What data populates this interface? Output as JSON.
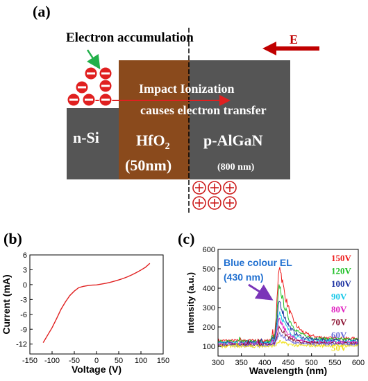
{
  "panels": {
    "a": {
      "label": "(a)",
      "annotation_accumulation": "Electron accumulation",
      "field_label": "E",
      "impact_line1": "Impact Ionization",
      "impact_line2": "causes electron transfer",
      "layers": {
        "nsi": "n-Si",
        "hfo2_main": "HfO",
        "hfo2_sub": "2",
        "hfo2_thickness": "(50nm)",
        "algan": "p-AlGaN",
        "algan_thickness": "(800 nm)"
      },
      "colors": {
        "nsi": "#555555",
        "hfo2": "#8a4a1c",
        "algan": "#555555",
        "electron": "#e02020",
        "hole": "#cc1b1b",
        "field_arrow": "#c00000",
        "accum_arrow": "#22b04a",
        "transfer_arrow": "#e02020"
      }
    },
    "b": {
      "label": "(b)",
      "chart_data": {
        "type": "line",
        "xlabel": "Voltage (V)",
        "ylabel": "Current (mA)",
        "xlim": [
          -150,
          150
        ],
        "ylim": [
          -14,
          6
        ],
        "xticks": [
          -150,
          -100,
          -50,
          0,
          50,
          100,
          150
        ],
        "yticks": [
          -12,
          -9,
          -6,
          -3,
          0,
          3,
          6
        ],
        "color": "#e02020",
        "x": [
          -120,
          -110,
          -100,
          -90,
          -80,
          -70,
          -60,
          -50,
          -40,
          -30,
          -20,
          -10,
          0,
          10,
          20,
          30,
          40,
          50,
          60,
          70,
          80,
          90,
          100,
          110,
          120
        ],
        "y": [
          -11.7,
          -10.2,
          -8.7,
          -6.9,
          -5.0,
          -3.5,
          -2.2,
          -1.3,
          -0.6,
          -0.35,
          -0.2,
          -0.1,
          -0.05,
          0.1,
          0.25,
          0.45,
          0.7,
          0.95,
          1.25,
          1.6,
          2.0,
          2.45,
          2.95,
          3.5,
          4.3
        ]
      }
    },
    "c": {
      "label": "(c)",
      "annotation": "Blue colour EL",
      "annotation_sub": "(430 nm)",
      "annotation_color": "#1f6fd0",
      "annotation_arrow_color": "#7a35b8",
      "chart_data": {
        "type": "line",
        "xlabel": "Wavelength (nm)",
        "ylabel": "Intensity (a.u.)",
        "xlim": [
          300,
          600
        ],
        "ylim": [
          50,
          600
        ],
        "xticks": [
          300,
          350,
          400,
          450,
          500,
          550,
          600
        ],
        "yticks": [
          100,
          200,
          300,
          400,
          500,
          600
        ],
        "series": [
          {
            "name": "150V",
            "color": "#ee1c1c",
            "peak": 525,
            "baseline": 130,
            "tail": 140
          },
          {
            "name": "120V",
            "color": "#22c02a",
            "peak": 415,
            "baseline": 125,
            "tail": 135
          },
          {
            "name": "100V",
            "color": "#1a2fa0",
            "peak": 335,
            "baseline": 120,
            "tail": 130
          },
          {
            "name": "90V",
            "color": "#19c8e8",
            "peak": 280,
            "baseline": 115,
            "tail": 125
          },
          {
            "name": "80V",
            "color": "#e020c0",
            "peak": 235,
            "baseline": 112,
            "tail": 120
          },
          {
            "name": "70V",
            "color": "#8a1030",
            "peak": 200,
            "baseline": 108,
            "tail": 116
          },
          {
            "name": "60V",
            "color": "#6a6ad8",
            "peak": 165,
            "baseline": 104,
            "tail": 110
          },
          {
            "name": "50V",
            "color": "#f0e020",
            "peak": 125,
            "baseline": 100,
            "tail": 103
          }
        ]
      }
    }
  }
}
